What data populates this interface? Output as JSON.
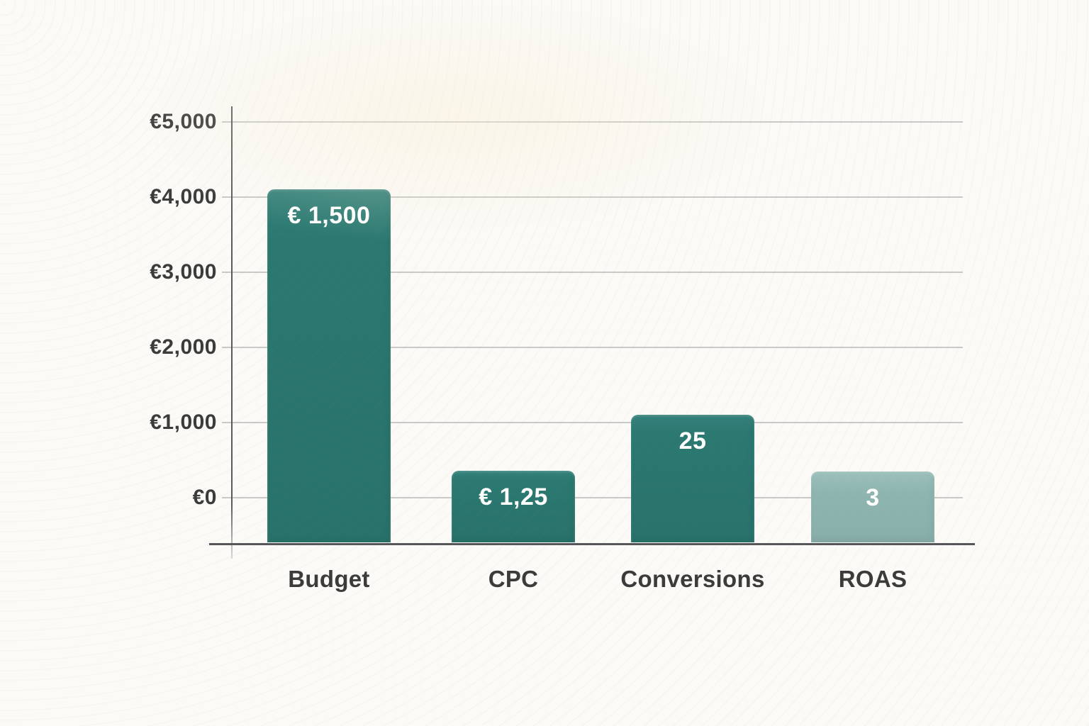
{
  "page": {
    "background_color": "#fbfaf7"
  },
  "chart_data": {
    "type": "bar",
    "title": "",
    "xlabel": "",
    "ylabel": "",
    "categories": [
      "Budget",
      "CPC",
      "Conversions",
      "ROAS"
    ],
    "values": [
      1500,
      1.25,
      25,
      3
    ],
    "bar_labels": [
      "€ 1,500",
      "€ 1,25",
      "25",
      "3"
    ],
    "bar_display_heights_axis_units": [
      4100,
      360,
      1100,
      350
    ],
    "y_ticks": [
      {
        "value": 5000,
        "label": "€5,000"
      },
      {
        "value": 4000,
        "label": "€4,000"
      },
      {
        "value": 3000,
        "label": "€3,000"
      },
      {
        "value": 2000,
        "label": "€2,000"
      },
      {
        "value": 1000,
        "label": "€1,000"
      },
      {
        "value": 0,
        "label": "€0"
      }
    ],
    "ylim": [
      0,
      5000
    ],
    "grid": true,
    "legend_position": "none",
    "colors": {
      "bar_primary": "#2b7971",
      "bar_muted": "#8fb5b1",
      "bar_label_text": "#ffffff",
      "gridline": "#c9c9c7",
      "axis_line": "#55565a",
      "tick_label_text": "#3b3b3b",
      "category_label_text": "#3b3b3b"
    },
    "bar_color_keys": [
      "bar_primary",
      "bar_primary",
      "bar_primary",
      "bar_muted"
    ]
  }
}
